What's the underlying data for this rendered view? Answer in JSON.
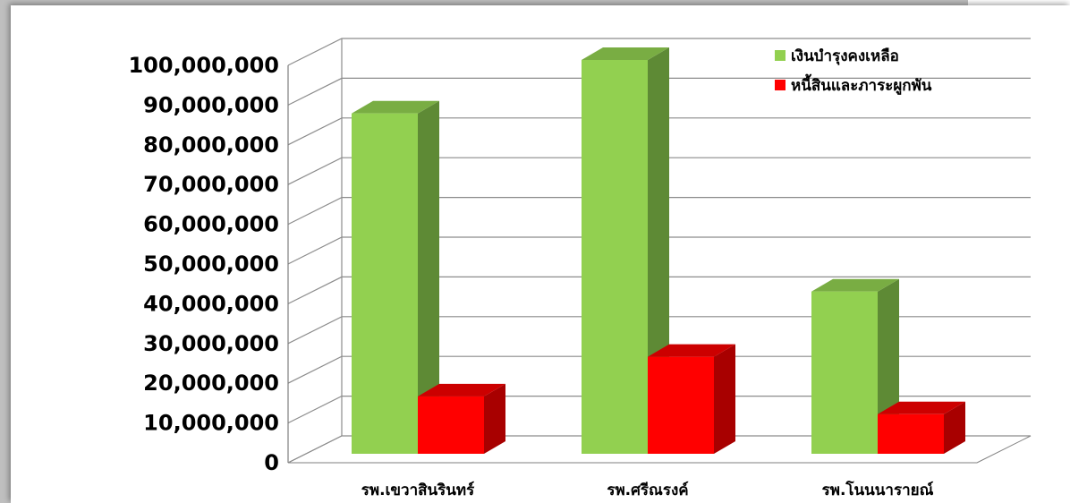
{
  "chart_data": {
    "type": "bar",
    "categories": [
      "รพ.เขวาสินรินทร์",
      "รพ.ศรีณรงค์",
      "รพ.โนนนารายณ์"
    ],
    "series": [
      {
        "name": "เงินบำรุงคงเหลือ",
        "values": [
          86000000,
          99500000,
          41000000
        ],
        "color": "#92d050",
        "side_color": "#5e8a35",
        "top_color": "#79ad43"
      },
      {
        "name": "หนี้สินและภาระผูกพัน",
        "values": [
          14500000,
          24500000,
          10000000
        ],
        "color": "#ff0000",
        "side_color": "#a80000",
        "top_color": "#cc0000"
      }
    ],
    "y_ticks": [
      "0",
      "10,000,000",
      "20,000,000",
      "30,000,000",
      "40,000,000",
      "50,000,000",
      "60,000,000",
      "70,000,000",
      "80,000,000",
      "90,000,000",
      "100,000,000"
    ],
    "ylim": [
      0,
      100000000
    ],
    "grid": true,
    "legend": "top-right",
    "title": "",
    "xlabel": "",
    "ylabel": ""
  }
}
